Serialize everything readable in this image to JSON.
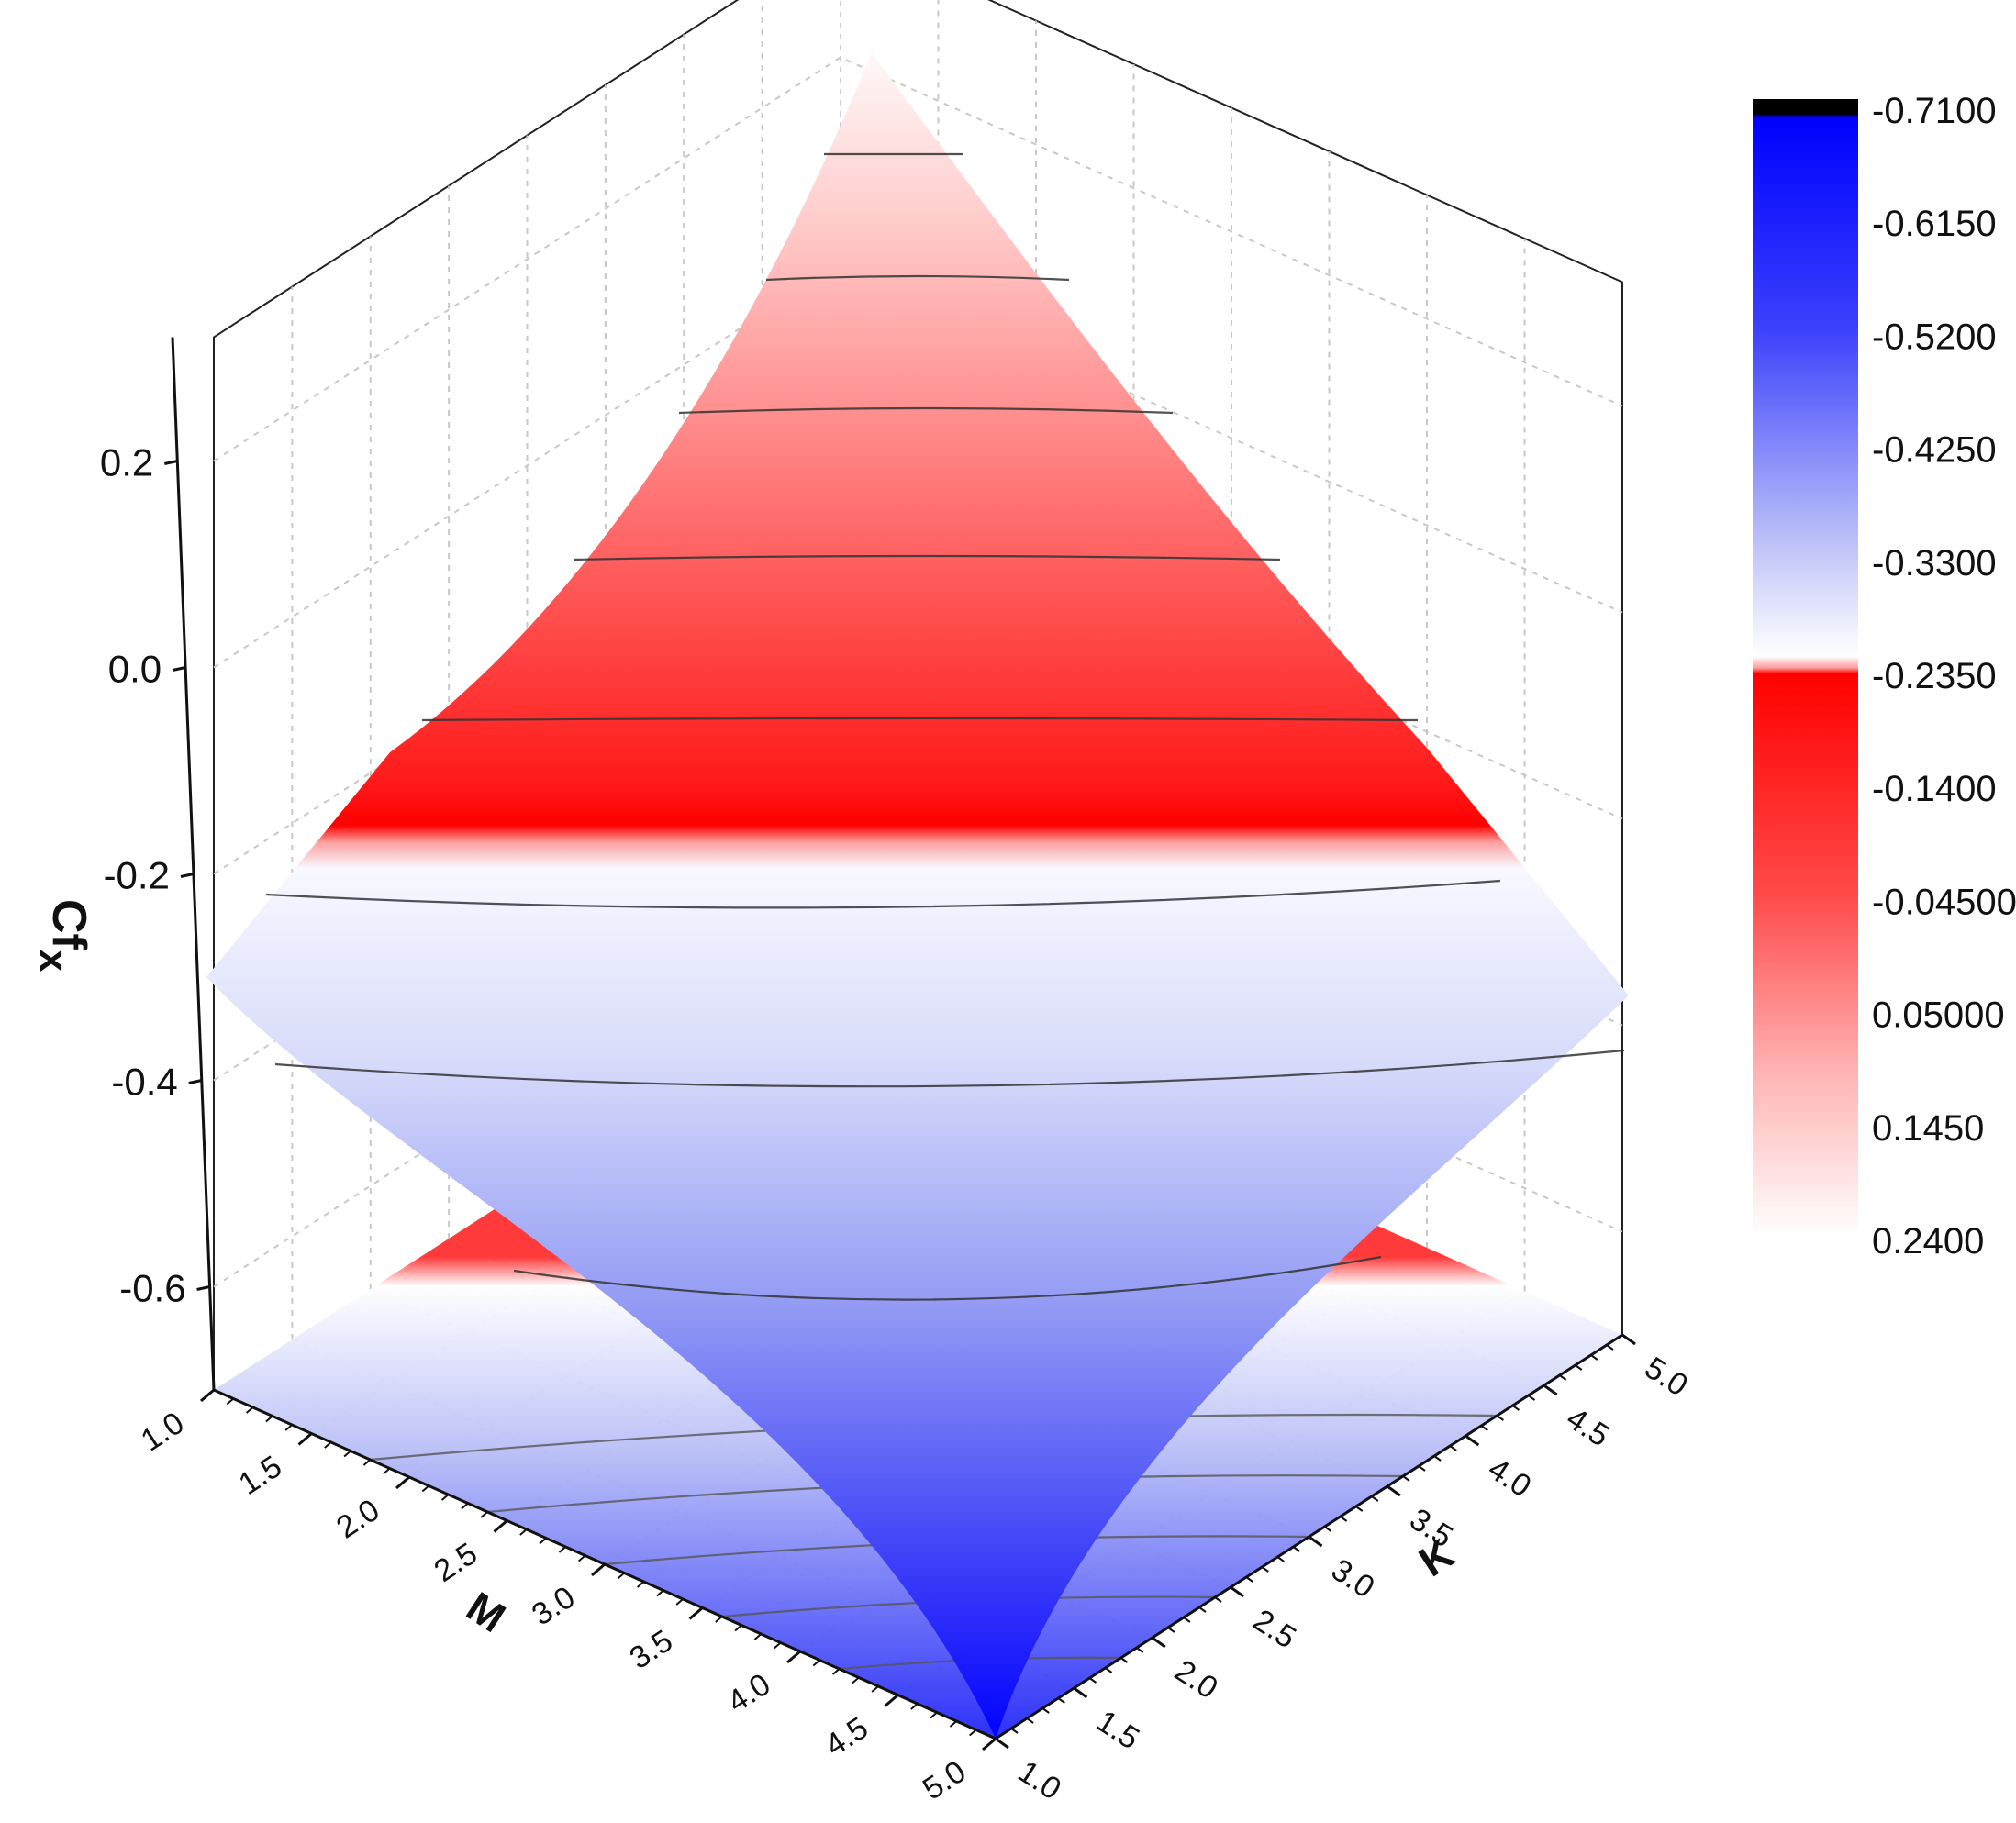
{
  "chart_data": {
    "type": "surface3d",
    "x_axis": {
      "label": "M",
      "ticks": [
        "1.0",
        "1.5",
        "2.0",
        "2.5",
        "3.0",
        "3.5",
        "4.0",
        "4.5",
        "5.0"
      ],
      "range": [
        1.0,
        5.0
      ]
    },
    "y_axis": {
      "label": "K",
      "ticks": [
        "1.0",
        "1.5",
        "2.0",
        "2.5",
        "3.0",
        "3.5",
        "4.0",
        "4.5",
        "5.0"
      ],
      "range": [
        1.0,
        5.0
      ]
    },
    "z_axis": {
      "label": "Cf",
      "label_subscript": "x",
      "ticks": [
        "0.2",
        "0.0",
        "-0.2",
        "-0.4",
        "-0.6"
      ],
      "range": [
        -0.71,
        0.24
      ]
    },
    "surface_samples": [
      {
        "M": 1.0,
        "K": 1.0,
        "z": 0.24
      },
      {
        "M": 5.0,
        "K": 1.0,
        "z": -0.39
      },
      {
        "M": 1.0,
        "K": 5.0,
        "z": -0.39
      },
      {
        "M": 5.0,
        "K": 5.0,
        "z": -0.71
      },
      {
        "M": 3.0,
        "K": 3.0,
        "z": -0.24
      }
    ],
    "projected_contour_on_floor": true,
    "grid": true,
    "colorbar": {
      "placement": "right",
      "labels": [
        "-0.7100",
        "-0.6150",
        "-0.5200",
        "-0.4250",
        "-0.3300",
        "-0.2350",
        "-0.1400",
        "-0.04500",
        "0.05000",
        "0.1450",
        "0.2400"
      ],
      "colors": {
        "blue": "#0000ff",
        "white": "#ffffff",
        "red": "#ff0000",
        "black": "#000000"
      }
    }
  }
}
